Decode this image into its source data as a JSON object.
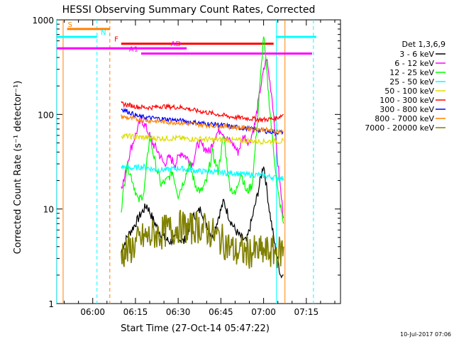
{
  "chart_data": {
    "type": "line",
    "title": "HESSI Observing Summary Count Rates, Corrected",
    "xlabel": "Start Time (27-Oct-14 05:47:22)",
    "ylabel": "Corrected Count Rate (s⁻¹ detector⁻¹)",
    "yscale": "log",
    "ylim": [
      1,
      1000
    ],
    "xlim": [
      "05:47:22",
      "07:27:00"
    ],
    "x_unit": "minutes since 05:00",
    "x_tick_labels": [
      {
        "minute": 60,
        "label": "06:00"
      },
      {
        "minute": 75,
        "label": "06:15"
      },
      {
        "minute": 90,
        "label": "06:30"
      },
      {
        "minute": 105,
        "label": "06:45"
      },
      {
        "minute": 120,
        "label": "07:00"
      },
      {
        "minute": 135,
        "label": "07:15"
      }
    ],
    "y_tick_labels": [
      {
        "value": 1,
        "label": "1"
      },
      {
        "value": 10,
        "label": "10"
      },
      {
        "value": 100,
        "label": "100"
      },
      {
        "value": 1000,
        "label": "1000"
      }
    ],
    "legend_title": "Det 1,3,6,9",
    "legend_position": "right, outside plot",
    "series": [
      {
        "name": "3 - 6 keV",
        "color": "#000000",
        "x": [
          70,
          72,
          75,
          77,
          79,
          81,
          83,
          85,
          87,
          90,
          92,
          95,
          98,
          100,
          102,
          104,
          106,
          108,
          110,
          112,
          114,
          116,
          118,
          120,
          122,
          124,
          126,
          127
        ],
        "values": [
          3.5,
          5,
          7,
          9,
          11,
          8,
          6,
          5,
          4.5,
          5,
          4.5,
          8,
          10,
          7,
          5,
          8,
          12,
          8,
          6,
          5,
          4.5,
          8,
          15,
          30,
          10,
          4,
          2,
          2
        ]
      },
      {
        "name": "6 - 12 keV",
        "color": "#ff00ff",
        "x": [
          70,
          71,
          73,
          75,
          77,
          79,
          81,
          83,
          85,
          87,
          89,
          91,
          93,
          95,
          97,
          99,
          101,
          103,
          105,
          107,
          109,
          111,
          113,
          115,
          117,
          119,
          121,
          123,
          125,
          127
        ],
        "values": [
          18,
          20,
          40,
          60,
          90,
          70,
          50,
          40,
          30,
          35,
          30,
          40,
          35,
          30,
          50,
          45,
          40,
          60,
          70,
          55,
          50,
          40,
          60,
          50,
          80,
          200,
          400,
          150,
          30,
          8
        ]
      },
      {
        "name": "12 - 25 keV",
        "color": "#00ff00",
        "x": [
          70,
          72,
          74,
          76,
          78,
          80,
          82,
          84,
          86,
          88,
          90,
          92,
          94,
          96,
          98,
          100,
          102,
          104,
          106,
          108,
          110,
          112,
          114,
          116,
          118,
          120,
          121,
          123,
          125,
          127
        ],
        "values": [
          10,
          30,
          20,
          12,
          15,
          60,
          30,
          18,
          20,
          25,
          14,
          20,
          30,
          18,
          15,
          20,
          40,
          25,
          60,
          18,
          14,
          25,
          15,
          18,
          100,
          700,
          300,
          60,
          15,
          7
        ]
      },
      {
        "name": "25 - 50 keV",
        "color": "#00ffff",
        "x": [
          70,
          74,
          78,
          82,
          86,
          90,
          94,
          98,
          102,
          106,
          110,
          114,
          118,
          122,
          126,
          127
        ],
        "values": [
          28,
          27,
          28,
          26,
          26,
          27,
          26,
          25,
          25,
          24,
          24,
          23,
          23,
          22,
          21,
          21
        ]
      },
      {
        "name": "50 - 100 keV",
        "color": "#dddd00",
        "x": [
          70,
          74,
          78,
          82,
          86,
          90,
          94,
          98,
          102,
          106,
          110,
          114,
          118,
          122,
          126,
          127
        ],
        "values": [
          60,
          58,
          57,
          56,
          56,
          56,
          55,
          55,
          54,
          54,
          53,
          53,
          52,
          52,
          52,
          52
        ]
      },
      {
        "name": "100 - 300 keV",
        "color": "#ff0000",
        "x": [
          70,
          73,
          76,
          80,
          84,
          88,
          92,
          96,
          100,
          104,
          108,
          112,
          116,
          120,
          124,
          127
        ],
        "values": [
          130,
          125,
          120,
          118,
          122,
          120,
          118,
          110,
          105,
          100,
          95,
          92,
          90,
          88,
          90,
          100
        ]
      },
      {
        "name": "300 - 800 keV",
        "color": "#0000ff",
        "x": [
          70,
          73,
          76,
          80,
          84,
          88,
          92,
          96,
          100,
          104,
          108,
          112,
          116,
          120,
          124,
          127
        ],
        "values": [
          115,
          105,
          95,
          92,
          90,
          88,
          85,
          82,
          80,
          78,
          75,
          72,
          70,
          67,
          65,
          65
        ]
      },
      {
        "name": "800 - 7000 keV",
        "color": "#ff8000",
        "x": [
          70,
          74,
          78,
          82,
          86,
          90,
          94,
          98,
          102,
          106,
          110,
          114,
          118,
          122,
          126,
          127
        ],
        "values": [
          95,
          90,
          87,
          85,
          83,
          82,
          80,
          78,
          76,
          75,
          73,
          72,
          70,
          68,
          66,
          65
        ]
      },
      {
        "name": "7000 - 20000 keV",
        "color": "#808000",
        "x": [
          70,
          72,
          74,
          76,
          78,
          80,
          82,
          84,
          86,
          88,
          90,
          92,
          94,
          96,
          98,
          100,
          102,
          104,
          106,
          108,
          110,
          112,
          114,
          116,
          118,
          120,
          122,
          124,
          126,
          127
        ],
        "values": [
          3.5,
          3.5,
          4,
          4.5,
          5,
          5,
          5.5,
          5.5,
          6,
          6,
          6.5,
          6.5,
          6,
          6.5,
          6.5,
          6,
          5.5,
          5,
          4.5,
          4,
          3.5,
          3.5,
          3.5,
          3.5,
          3.5,
          3.5,
          3.5,
          3.5,
          3.5,
          4
        ]
      }
    ],
    "flag_bars": [
      {
        "label": "S",
        "color": "#ff8000",
        "x_start": 51,
        "x_end": 66,
        "y": 800
      },
      {
        "label": "N",
        "color": "#00ffff",
        "x_start": 47.4,
        "x_end": 61.5,
        "y": 660
      },
      {
        "label": "F",
        "color": "#ff0000",
        "x_start": 70,
        "x_end": 123.5,
        "y": 560
      },
      {
        "label": "AD",
        "color": "#ff00ff",
        "x_start": 47.4,
        "x_end": 93,
        "y": 500
      },
      {
        "label": "A1",
        "color": "#ff00ff",
        "x_start": 77,
        "x_end": 137,
        "y": 440
      }
    ],
    "vertical_lines": [
      {
        "x": 47.4,
        "color": "#00ffff",
        "style": "solid"
      },
      {
        "x": 49.6,
        "color": "#ff8000",
        "style": "solid"
      },
      {
        "x": 61.5,
        "color": "#00ffff",
        "style": "dashed"
      },
      {
        "x": 66,
        "color": "#ff8000",
        "style": "dashed"
      },
      {
        "x": 124.5,
        "color": "#00ffff",
        "style": "solid"
      },
      {
        "x": 127.5,
        "color": "#ff8000",
        "style": "solid"
      },
      {
        "x": 137.5,
        "color": "#00ffff",
        "style": "dashed"
      }
    ],
    "right_cyan_bar": {
      "color": "#00ffff",
      "x_start": 124.5,
      "x_end": 138.5,
      "y": 660
    }
  },
  "footer": {
    "generated_date": "10-Jul-2017 07:06"
  }
}
